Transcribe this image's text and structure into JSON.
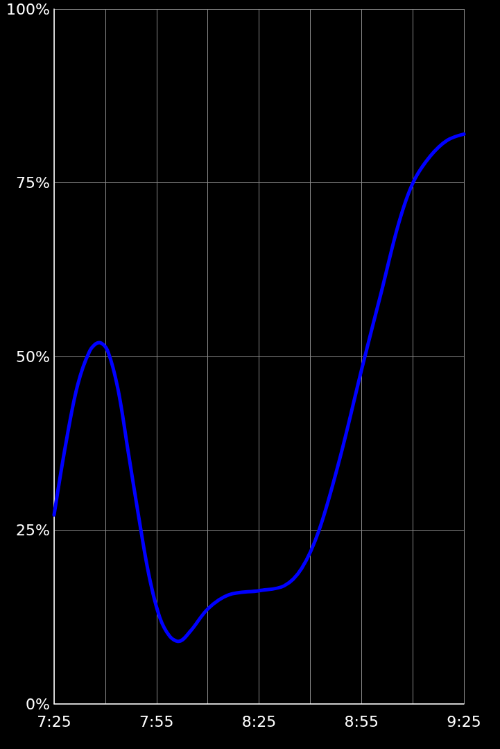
{
  "chart_data": {
    "type": "line",
    "x": [
      7.417,
      7.474,
      7.532,
      7.593,
      7.637,
      7.677,
      7.728,
      7.778,
      7.83,
      7.88,
      7.932,
      7.982,
      8.025,
      8.083,
      8.168,
      8.27,
      8.418,
      8.54,
      8.625,
      8.71,
      8.812,
      8.92,
      9.015,
      9.1,
      9.17,
      9.252,
      9.335,
      9.417
    ],
    "series": [
      {
        "color": "#0000ff",
        "values": [
          27.2,
          37.4,
          45.9,
          50.9,
          52,
          50.9,
          45.4,
          36.4,
          26.9,
          18.5,
          12.5,
          9.7,
          9,
          10.5,
          13.7,
          15.7,
          16.3,
          17,
          19.5,
          25,
          35.4,
          48.4,
          59.4,
          69.3,
          75.1,
          78.8,
          81.1,
          82
        ]
      }
    ],
    "xlim": [
      7.417,
      9.417
    ],
    "xticks": [
      {
        "value": 7.417,
        "label": "7:25"
      },
      {
        "value": 7.667,
        "label": null
      },
      {
        "value": 7.917,
        "label": "7:55"
      },
      {
        "value": 8.167,
        "label": null
      },
      {
        "value": 8.417,
        "label": "8:25"
      },
      {
        "value": 8.667,
        "label": null
      },
      {
        "value": 8.917,
        "label": "8:55"
      },
      {
        "value": 9.167,
        "label": null
      },
      {
        "value": 9.417,
        "label": "9:25"
      }
    ],
    "ylim": [
      0,
      100
    ],
    "yticks": [
      {
        "value": 0,
        "label": "0%"
      },
      {
        "value": 25,
        "label": "25%"
      },
      {
        "value": 50,
        "label": "50%"
      },
      {
        "value": 75,
        "label": "75%"
      },
      {
        "value": 100,
        "label": "100%"
      }
    ],
    "grid": true,
    "marker": "none",
    "line_style": "solid"
  }
}
